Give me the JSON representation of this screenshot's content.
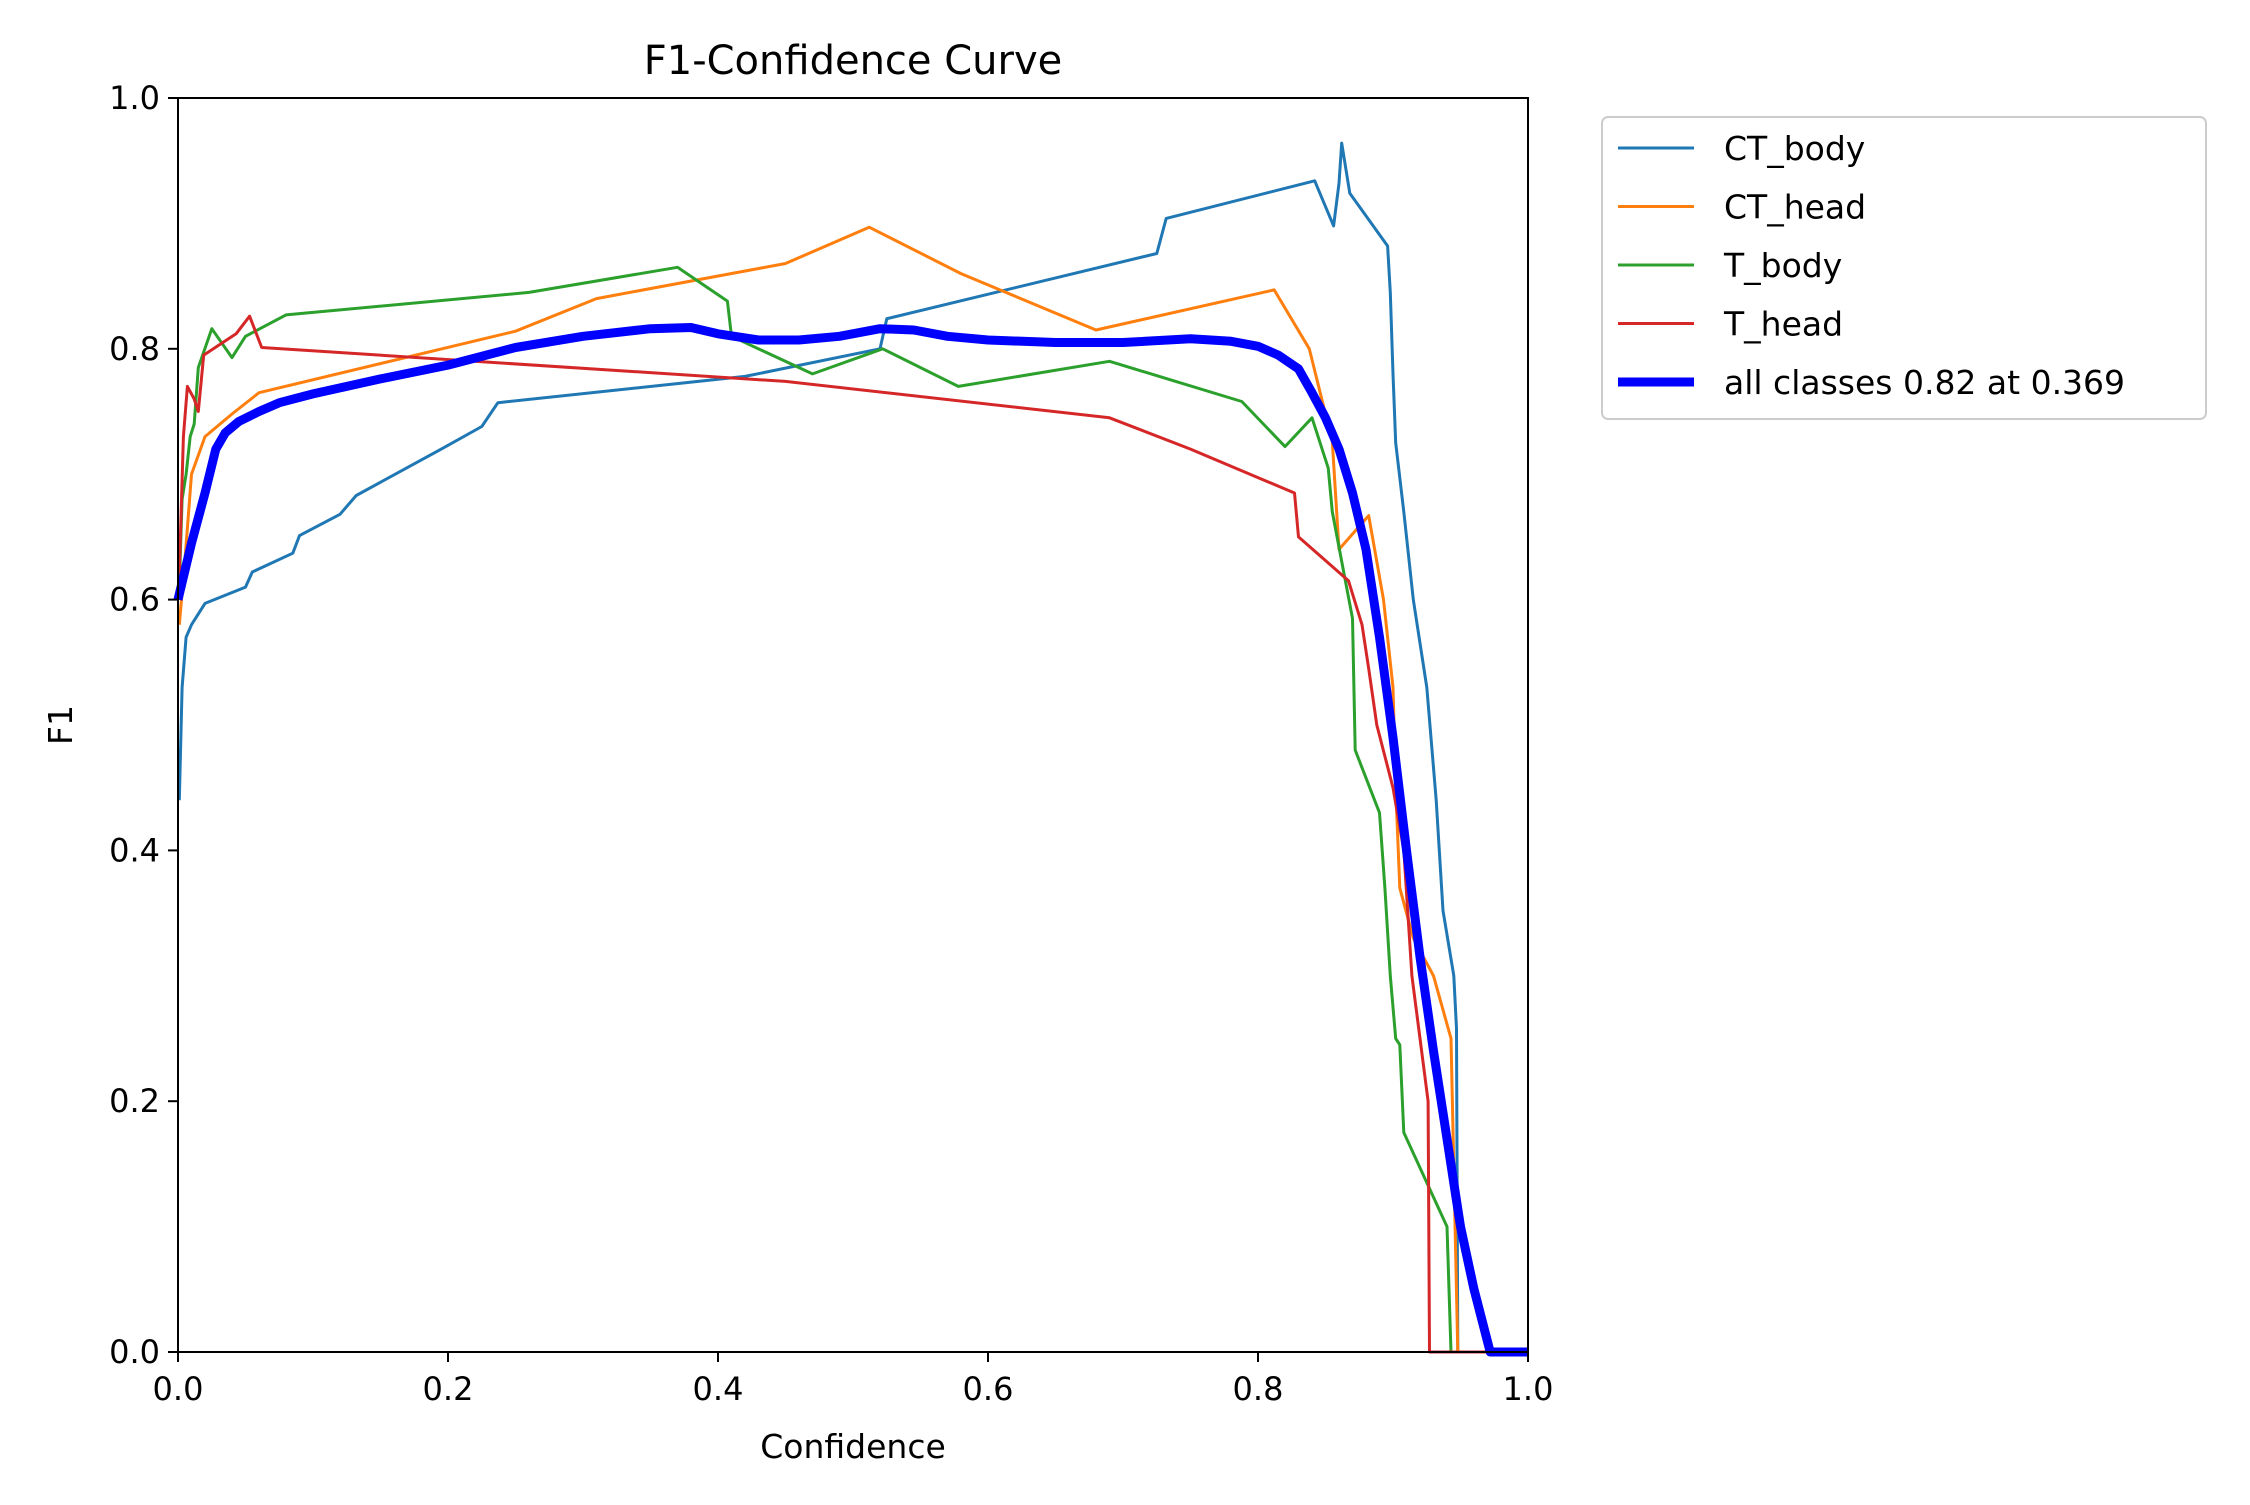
{
  "chart_data": {
    "type": "line",
    "title": "F1-Confidence Curve",
    "xlabel": "Confidence",
    "ylabel": "F1",
    "xlim": [
      0,
      1
    ],
    "ylim": [
      0,
      1
    ],
    "xticks": [
      "0.0",
      "0.2",
      "0.4",
      "0.6",
      "0.8",
      "1.0"
    ],
    "yticks": [
      "0.0",
      "0.2",
      "0.4",
      "0.6",
      "0.8",
      "1.0"
    ],
    "grid": false,
    "legend_position": "outside-top-right",
    "series": [
      {
        "name": "CT_body",
        "color": "#1f77b4",
        "width": "thin",
        "points": [
          [
            0.001,
            0.44
          ],
          [
            0.003,
            0.53
          ],
          [
            0.006,
            0.57
          ],
          [
            0.01,
            0.58
          ],
          [
            0.02,
            0.597
          ],
          [
            0.05,
            0.61
          ],
          [
            0.055,
            0.622
          ],
          [
            0.085,
            0.637
          ],
          [
            0.09,
            0.651
          ],
          [
            0.12,
            0.668
          ],
          [
            0.132,
            0.683
          ],
          [
            0.195,
            0.72
          ],
          [
            0.225,
            0.738
          ],
          [
            0.237,
            0.757
          ],
          [
            0.42,
            0.778
          ],
          [
            0.52,
            0.8
          ],
          [
            0.525,
            0.824
          ],
          [
            0.725,
            0.876
          ],
          [
            0.732,
            0.904
          ],
          [
            0.842,
            0.934
          ],
          [
            0.856,
            0.898
          ],
          [
            0.86,
            0.932
          ],
          [
            0.862,
            0.964
          ],
          [
            0.868,
            0.924
          ],
          [
            0.896,
            0.882
          ],
          [
            0.898,
            0.845
          ],
          [
            0.9,
            0.78
          ],
          [
            0.902,
            0.725
          ],
          [
            0.908,
            0.67
          ],
          [
            0.915,
            0.6
          ],
          [
            0.925,
            0.53
          ],
          [
            0.932,
            0.44
          ],
          [
            0.937,
            0.352
          ],
          [
            0.945,
            0.3
          ],
          [
            0.947,
            0.258
          ],
          [
            0.948,
            0.0
          ],
          [
            1.0,
            0.0
          ]
        ]
      },
      {
        "name": "CT_head",
        "color": "#ff7f0e",
        "width": "thin",
        "points": [
          [
            0.001,
            0.58
          ],
          [
            0.005,
            0.63
          ],
          [
            0.01,
            0.7
          ],
          [
            0.02,
            0.73
          ],
          [
            0.04,
            0.748
          ],
          [
            0.06,
            0.765
          ],
          [
            0.25,
            0.814
          ],
          [
            0.31,
            0.84
          ],
          [
            0.45,
            0.868
          ],
          [
            0.512,
            0.897
          ],
          [
            0.58,
            0.86
          ],
          [
            0.68,
            0.815
          ],
          [
            0.812,
            0.847
          ],
          [
            0.838,
            0.8
          ],
          [
            0.855,
            0.726
          ],
          [
            0.86,
            0.64
          ],
          [
            0.882,
            0.667
          ],
          [
            0.893,
            0.6
          ],
          [
            0.9,
            0.53
          ],
          [
            0.902,
            0.45
          ],
          [
            0.905,
            0.37
          ],
          [
            0.915,
            0.33
          ],
          [
            0.93,
            0.3
          ],
          [
            0.943,
            0.25
          ],
          [
            0.948,
            0.0
          ],
          [
            1.0,
            0.0
          ]
        ]
      },
      {
        "name": "T_body",
        "color": "#2ca02c",
        "width": "thin",
        "points": [
          [
            0.001,
            0.61
          ],
          [
            0.003,
            0.68
          ],
          [
            0.006,
            0.7
          ],
          [
            0.009,
            0.73
          ],
          [
            0.012,
            0.74
          ],
          [
            0.015,
            0.785
          ],
          [
            0.025,
            0.816
          ],
          [
            0.04,
            0.793
          ],
          [
            0.05,
            0.81
          ],
          [
            0.08,
            0.827
          ],
          [
            0.26,
            0.845
          ],
          [
            0.37,
            0.865
          ],
          [
            0.407,
            0.838
          ],
          [
            0.41,
            0.81
          ],
          [
            0.47,
            0.78
          ],
          [
            0.522,
            0.8
          ],
          [
            0.578,
            0.77
          ],
          [
            0.69,
            0.79
          ],
          [
            0.788,
            0.758
          ],
          [
            0.82,
            0.722
          ],
          [
            0.84,
            0.745
          ],
          [
            0.852,
            0.705
          ],
          [
            0.855,
            0.67
          ],
          [
            0.87,
            0.585
          ],
          [
            0.872,
            0.48
          ],
          [
            0.89,
            0.43
          ],
          [
            0.894,
            0.37
          ],
          [
            0.898,
            0.3
          ],
          [
            0.902,
            0.25
          ],
          [
            0.905,
            0.245
          ],
          [
            0.908,
            0.175
          ],
          [
            0.94,
            0.1
          ],
          [
            0.943,
            0.0
          ],
          [
            1.0,
            0.0
          ]
        ]
      },
      {
        "name": "T_head",
        "color": "#d62728",
        "width": "thin",
        "points": [
          [
            0.001,
            0.62
          ],
          [
            0.004,
            0.73
          ],
          [
            0.007,
            0.77
          ],
          [
            0.012,
            0.76
          ],
          [
            0.015,
            0.75
          ],
          [
            0.019,
            0.795
          ],
          [
            0.043,
            0.812
          ],
          [
            0.053,
            0.826
          ],
          [
            0.062,
            0.801
          ],
          [
            0.45,
            0.774
          ],
          [
            0.69,
            0.745
          ],
          [
            0.75,
            0.72
          ],
          [
            0.827,
            0.685
          ],
          [
            0.83,
            0.65
          ],
          [
            0.867,
            0.615
          ],
          [
            0.877,
            0.58
          ],
          [
            0.882,
            0.545
          ],
          [
            0.888,
            0.5
          ],
          [
            0.9,
            0.45
          ],
          [
            0.908,
            0.4
          ],
          [
            0.914,
            0.3
          ],
          [
            0.92,
            0.25
          ],
          [
            0.926,
            0.2
          ],
          [
            0.927,
            0.0
          ],
          [
            1.0,
            0.0
          ]
        ]
      },
      {
        "name": "all classes 0.82 at 0.369",
        "color": "#0000ff",
        "width": "thick",
        "points": [
          [
            0.0,
            0.6
          ],
          [
            0.01,
            0.645
          ],
          [
            0.02,
            0.685
          ],
          [
            0.028,
            0.72
          ],
          [
            0.035,
            0.733
          ],
          [
            0.045,
            0.742
          ],
          [
            0.06,
            0.75
          ],
          [
            0.075,
            0.757
          ],
          [
            0.1,
            0.764
          ],
          [
            0.15,
            0.776
          ],
          [
            0.2,
            0.787
          ],
          [
            0.25,
            0.801
          ],
          [
            0.3,
            0.81
          ],
          [
            0.35,
            0.816
          ],
          [
            0.38,
            0.817
          ],
          [
            0.4,
            0.812
          ],
          [
            0.43,
            0.807
          ],
          [
            0.46,
            0.807
          ],
          [
            0.49,
            0.81
          ],
          [
            0.52,
            0.816
          ],
          [
            0.545,
            0.815
          ],
          [
            0.57,
            0.81
          ],
          [
            0.6,
            0.807
          ],
          [
            0.65,
            0.805
          ],
          [
            0.7,
            0.805
          ],
          [
            0.75,
            0.808
          ],
          [
            0.78,
            0.806
          ],
          [
            0.8,
            0.802
          ],
          [
            0.815,
            0.795
          ],
          [
            0.83,
            0.784
          ],
          [
            0.84,
            0.765
          ],
          [
            0.85,
            0.745
          ],
          [
            0.86,
            0.72
          ],
          [
            0.87,
            0.685
          ],
          [
            0.88,
            0.64
          ],
          [
            0.89,
            0.57
          ],
          [
            0.9,
            0.49
          ],
          [
            0.91,
            0.4
          ],
          [
            0.92,
            0.315
          ],
          [
            0.93,
            0.24
          ],
          [
            0.94,
            0.17
          ],
          [
            0.95,
            0.1
          ],
          [
            0.96,
            0.05
          ],
          [
            0.972,
            0.0
          ],
          [
            1.0,
            0.0
          ]
        ]
      }
    ]
  }
}
